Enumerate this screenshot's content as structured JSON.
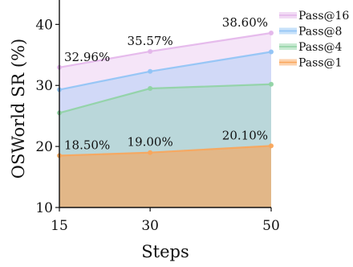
{
  "chart_data": {
    "type": "area",
    "xlabel": "Steps",
    "ylabel": "OSWorld SR (%)",
    "x": [
      15,
      30,
      50
    ],
    "xlim": [
      15,
      50
    ],
    "ylim": [
      10,
      44
    ],
    "xticks": [
      "15",
      "30",
      "50"
    ],
    "yticks": [
      "10",
      "20",
      "30",
      "40"
    ],
    "grid": false,
    "legend_position": "top-right",
    "series": [
      {
        "name": "Pass@1",
        "values": [
          18.5,
          19.0,
          20.1
        ],
        "color": "#f9a55a",
        "labels": [
          "18.50%",
          "19.00%",
          "20.10%"
        ]
      },
      {
        "name": "Pass@4",
        "values": [
          25.5,
          29.5,
          30.2
        ],
        "color": "#8fd3a3"
      },
      {
        "name": "Pass@8",
        "values": [
          29.3,
          32.3,
          35.5
        ],
        "color": "#8fc3f5"
      },
      {
        "name": "Pass@16",
        "values": [
          32.96,
          35.57,
          38.6
        ],
        "color": "#e3b5ea",
        "labels": [
          "32.96%",
          "35.57%",
          "38.60%"
        ]
      }
    ]
  }
}
